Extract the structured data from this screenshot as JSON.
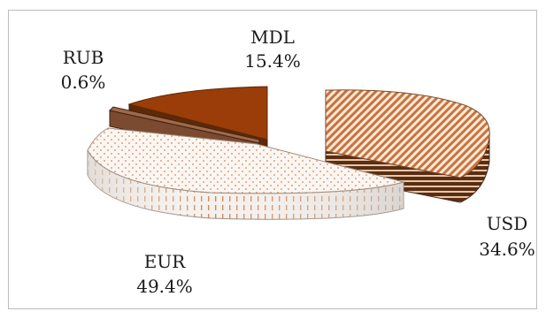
{
  "chart_data": {
    "type": "pie",
    "three_d": true,
    "exploded": true,
    "title": "",
    "categories": [
      "USD",
      "EUR",
      "RUB",
      "MDL"
    ],
    "values": [
      34.6,
      49.4,
      0.6,
      15.4
    ],
    "value_labels": [
      "34.6%",
      "49.4%",
      "0.6%",
      "15.4%"
    ],
    "colors": {
      "USD": "#c9733a",
      "EUR": "#f3e6dc",
      "RUB": "#7b4a30",
      "MDL": "#9a3d08"
    },
    "legend": "none",
    "grid": false
  }
}
